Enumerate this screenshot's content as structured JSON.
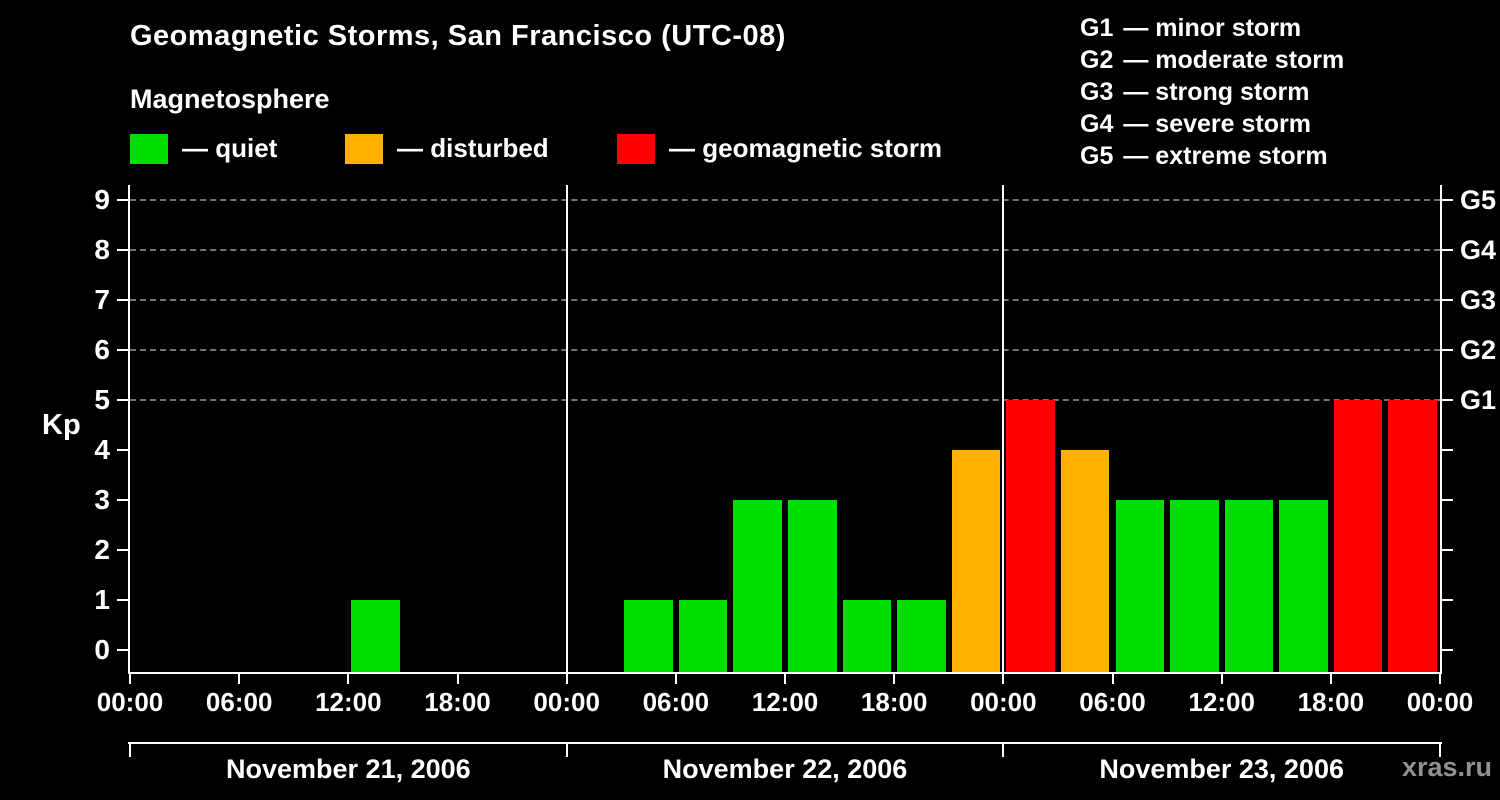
{
  "title": "Geomagnetic Storms, San Francisco (UTC-08)",
  "subtitle": "Magnetosphere",
  "legend": {
    "items": [
      {
        "name": "quiet",
        "label": "— quiet",
        "color": "#00dd00"
      },
      {
        "name": "disturbed",
        "label": "— disturbed",
        "color": "#ffb000"
      },
      {
        "name": "geomagnetic-storm",
        "label": "— geomagnetic storm",
        "color": "#ff0000"
      }
    ]
  },
  "storm_scale": [
    {
      "code": "G1",
      "label": "— minor storm"
    },
    {
      "code": "G2",
      "label": "— moderate storm"
    },
    {
      "code": "G3",
      "label": "— strong storm"
    },
    {
      "code": "G4",
      "label": "— severe storm"
    },
    {
      "code": "G5",
      "label": "— extreme storm"
    }
  ],
  "watermark": "xras.ru",
  "chart_data": {
    "type": "bar",
    "title": "Geomagnetic Storms, San Francisco (UTC-08)",
    "ylabel": "Kp",
    "ylim": [
      0,
      9
    ],
    "yticks": [
      0,
      1,
      2,
      3,
      4,
      5,
      6,
      7,
      8,
      9
    ],
    "gridlines_at": [
      5,
      6,
      7,
      8,
      9
    ],
    "grid": "dashed-horizontal",
    "legend_position": "top",
    "right_axis": [
      {
        "code": "G1",
        "kp": 5
      },
      {
        "code": "G2",
        "kp": 6
      },
      {
        "code": "G3",
        "kp": 7
      },
      {
        "code": "G4",
        "kp": 8
      },
      {
        "code": "G5",
        "kp": 9
      }
    ],
    "x_tick_labels": [
      "00:00",
      "06:00",
      "12:00",
      "18:00"
    ],
    "hours_per_bar": 3,
    "days": [
      {
        "date": "November 21, 2006",
        "kp": [
          0,
          0,
          0,
          0,
          1,
          0,
          0,
          0
        ]
      },
      {
        "date": "November 22, 2006",
        "kp": [
          0,
          1,
          1,
          3,
          3,
          1,
          1,
          4
        ]
      },
      {
        "date": "November 23, 2006",
        "kp": [
          5,
          4,
          3,
          3,
          3,
          3,
          5,
          5
        ]
      }
    ],
    "thresholds": {
      "quiet_max": 3,
      "disturbed": 4,
      "storm_min": 5
    },
    "colors": {
      "quiet": "#00dd00",
      "disturbed": "#ffb000",
      "storm": "#ff0000"
    }
  }
}
